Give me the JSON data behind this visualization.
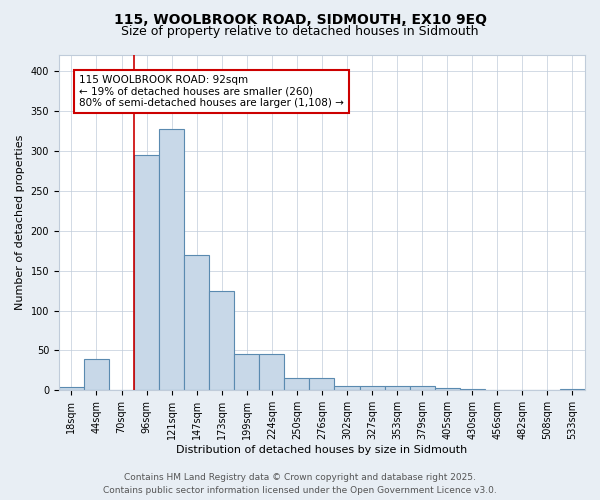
{
  "title": "115, WOOLBROOK ROAD, SIDMOUTH, EX10 9EQ",
  "subtitle": "Size of property relative to detached houses in Sidmouth",
  "xlabel": "Distribution of detached houses by size in Sidmouth",
  "ylabel": "Number of detached properties",
  "bar_labels": [
    "18sqm",
    "44sqm",
    "70sqm",
    "96sqm",
    "121sqm",
    "147sqm",
    "173sqm",
    "199sqm",
    "224sqm",
    "250sqm",
    "276sqm",
    "302sqm",
    "327sqm",
    "353sqm",
    "379sqm",
    "405sqm",
    "430sqm",
    "456sqm",
    "482sqm",
    "508sqm",
    "533sqm"
  ],
  "bar_values": [
    4,
    39,
    0,
    295,
    327,
    170,
    124,
    45,
    46,
    15,
    16,
    5,
    6,
    5,
    6,
    3,
    2,
    0,
    1,
    0,
    2
  ],
  "bar_color": "#c8d8e8",
  "bar_edgecolor": "#5a8ab0",
  "bar_linewidth": 0.8,
  "vline_color": "#cc0000",
  "vline_x_index": 2.5,
  "annotation_text": "115 WOOLBROOK ROAD: 92sqm\n← 19% of detached houses are smaller (260)\n80% of semi-detached houses are larger (1,108) →",
  "annotation_box_facecolor": "#ffffff",
  "annotation_box_edgecolor": "#cc0000",
  "ylim": [
    0,
    420
  ],
  "yticks": [
    0,
    50,
    100,
    150,
    200,
    250,
    300,
    350,
    400
  ],
  "footer": "Contains HM Land Registry data © Crown copyright and database right 2025.\nContains public sector information licensed under the Open Government Licence v3.0.",
  "bg_color": "#e8eef4",
  "plot_bg_color": "#ffffff",
  "grid_color": "#c0ccda",
  "title_fontsize": 10,
  "subtitle_fontsize": 9,
  "axis_label_fontsize": 8,
  "tick_fontsize": 7,
  "annotation_fontsize": 7.5,
  "footer_fontsize": 6.5
}
